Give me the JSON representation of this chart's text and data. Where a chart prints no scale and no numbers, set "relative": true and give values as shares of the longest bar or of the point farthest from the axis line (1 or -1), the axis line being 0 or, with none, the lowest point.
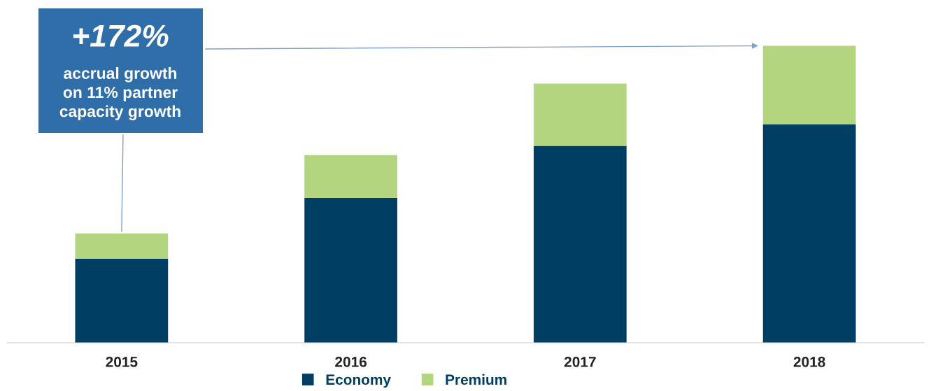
{
  "chart_data": {
    "type": "bar",
    "stacked": true,
    "relative": true,
    "categories": [
      "2015",
      "2016",
      "2017",
      "2018"
    ],
    "series": [
      {
        "name": "Economy",
        "color": "#003f63",
        "values": [
          0.283,
          0.488,
          0.663,
          0.736
        ]
      },
      {
        "name": "Premium",
        "color": "#b3d57f",
        "values": [
          0.085,
          0.144,
          0.21,
          0.264
        ]
      }
    ],
    "legend": "bottom",
    "grid": false,
    "annotations": [
      "+172%",
      "accrual growth\non 11% partner\ncapacity growth"
    ]
  }
}
